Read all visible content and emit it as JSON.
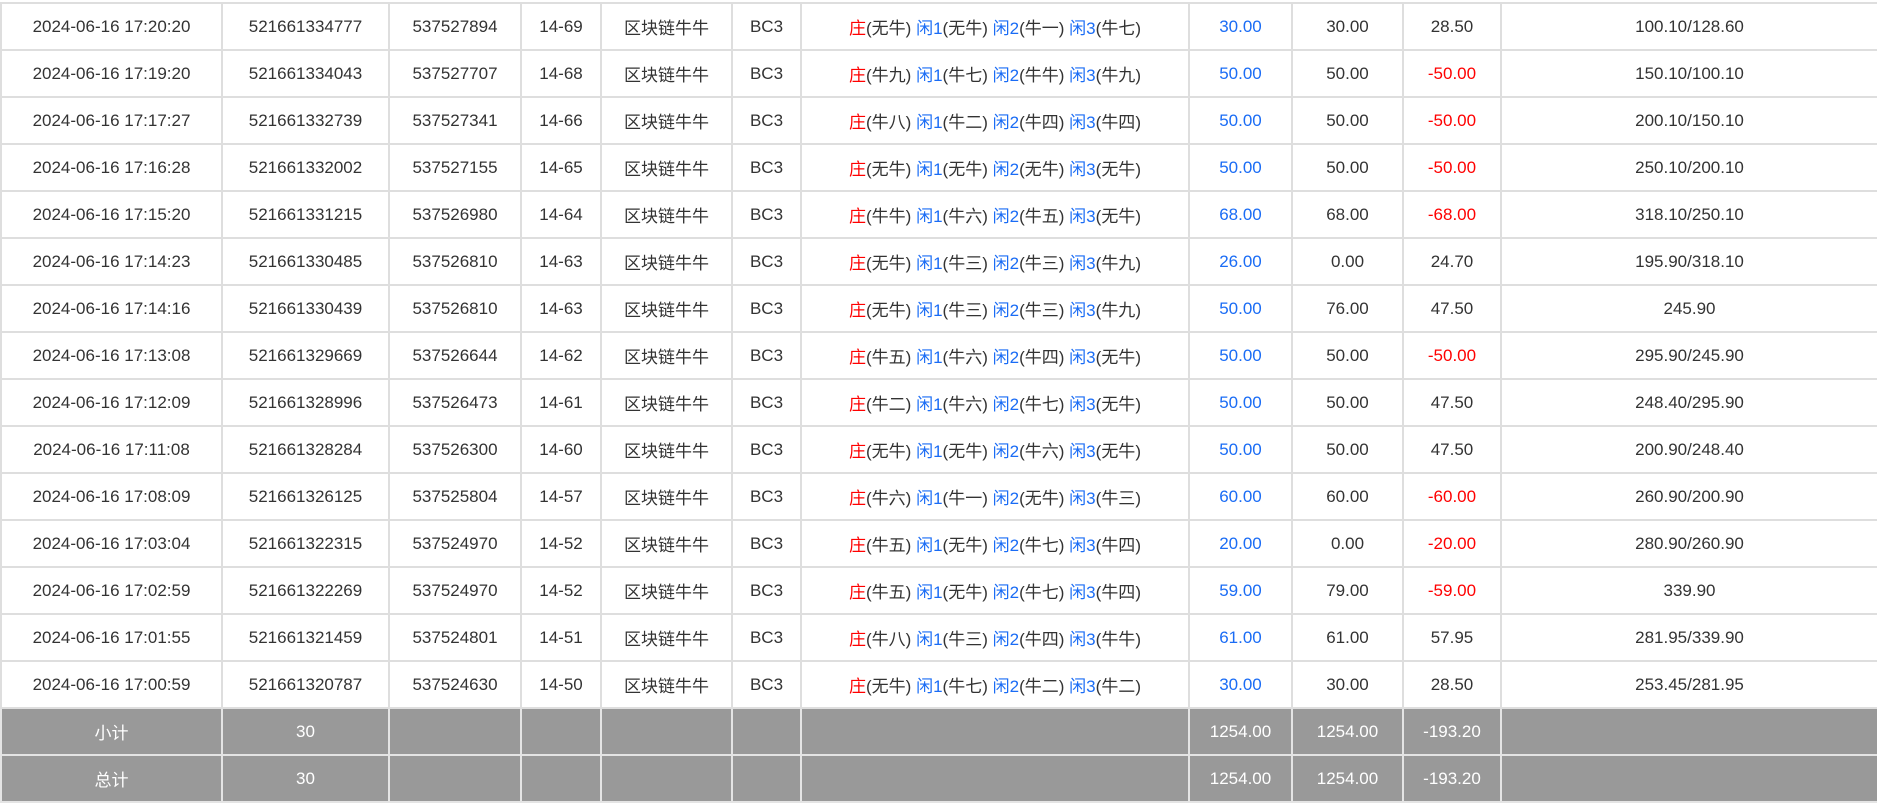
{
  "rows": [
    {
      "time": "2024-06-16 17:20:20",
      "order": "521661334777",
      "round": "537527894",
      "game_no": "14-69",
      "game": "区块链牛牛",
      "table": "BC3",
      "result": [
        "无牛",
        "无牛",
        "牛一",
        "牛七"
      ],
      "bet": "30.00",
      "valid": "30.00",
      "profit": "28.50",
      "balance": "100.10/128.60"
    },
    {
      "time": "2024-06-16 17:19:20",
      "order": "521661334043",
      "round": "537527707",
      "game_no": "14-68",
      "game": "区块链牛牛",
      "table": "BC3",
      "result": [
        "牛九",
        "牛七",
        "牛牛",
        "牛九"
      ],
      "bet": "50.00",
      "valid": "50.00",
      "profit": "-50.00",
      "balance": "150.10/100.10"
    },
    {
      "time": "2024-06-16 17:17:27",
      "order": "521661332739",
      "round": "537527341",
      "game_no": "14-66",
      "game": "区块链牛牛",
      "table": "BC3",
      "result": [
        "牛八",
        "牛二",
        "牛四",
        "牛四"
      ],
      "bet": "50.00",
      "valid": "50.00",
      "profit": "-50.00",
      "balance": "200.10/150.10"
    },
    {
      "time": "2024-06-16 17:16:28",
      "order": "521661332002",
      "round": "537527155",
      "game_no": "14-65",
      "game": "区块链牛牛",
      "table": "BC3",
      "result": [
        "无牛",
        "无牛",
        "无牛",
        "无牛"
      ],
      "bet": "50.00",
      "valid": "50.00",
      "profit": "-50.00",
      "balance": "250.10/200.10"
    },
    {
      "time": "2024-06-16 17:15:20",
      "order": "521661331215",
      "round": "537526980",
      "game_no": "14-64",
      "game": "区块链牛牛",
      "table": "BC3",
      "result": [
        "牛牛",
        "牛六",
        "牛五",
        "无牛"
      ],
      "bet": "68.00",
      "valid": "68.00",
      "profit": "-68.00",
      "balance": "318.10/250.10"
    },
    {
      "time": "2024-06-16 17:14:23",
      "order": "521661330485",
      "round": "537526810",
      "game_no": "14-63",
      "game": "区块链牛牛",
      "table": "BC3",
      "result": [
        "无牛",
        "牛三",
        "牛三",
        "牛九"
      ],
      "bet": "26.00",
      "valid": "0.00",
      "profit": "24.70",
      "balance": "195.90/318.10"
    },
    {
      "time": "2024-06-16 17:14:16",
      "order": "521661330439",
      "round": "537526810",
      "game_no": "14-63",
      "game": "区块链牛牛",
      "table": "BC3",
      "result": [
        "无牛",
        "牛三",
        "牛三",
        "牛九"
      ],
      "bet": "50.00",
      "valid": "76.00",
      "profit": "47.50",
      "balance": "245.90"
    },
    {
      "time": "2024-06-16 17:13:08",
      "order": "521661329669",
      "round": "537526644",
      "game_no": "14-62",
      "game": "区块链牛牛",
      "table": "BC3",
      "result": [
        "牛五",
        "牛六",
        "牛四",
        "无牛"
      ],
      "bet": "50.00",
      "valid": "50.00",
      "profit": "-50.00",
      "balance": "295.90/245.90"
    },
    {
      "time": "2024-06-16 17:12:09",
      "order": "521661328996",
      "round": "537526473",
      "game_no": "14-61",
      "game": "区块链牛牛",
      "table": "BC3",
      "result": [
        "牛二",
        "牛六",
        "牛七",
        "无牛"
      ],
      "bet": "50.00",
      "valid": "50.00",
      "profit": "47.50",
      "balance": "248.40/295.90"
    },
    {
      "time": "2024-06-16 17:11:08",
      "order": "521661328284",
      "round": "537526300",
      "game_no": "14-60",
      "game": "区块链牛牛",
      "table": "BC3",
      "result": [
        "无牛",
        "无牛",
        "牛六",
        "无牛"
      ],
      "bet": "50.00",
      "valid": "50.00",
      "profit": "47.50",
      "balance": "200.90/248.40"
    },
    {
      "time": "2024-06-16 17:08:09",
      "order": "521661326125",
      "round": "537525804",
      "game_no": "14-57",
      "game": "区块链牛牛",
      "table": "BC3",
      "result": [
        "牛六",
        "牛一",
        "无牛",
        "牛三"
      ],
      "bet": "60.00",
      "valid": "60.00",
      "profit": "-60.00",
      "balance": "260.90/200.90"
    },
    {
      "time": "2024-06-16 17:03:04",
      "order": "521661322315",
      "round": "537524970",
      "game_no": "14-52",
      "game": "区块链牛牛",
      "table": "BC3",
      "result": [
        "牛五",
        "无牛",
        "牛七",
        "牛四"
      ],
      "bet": "20.00",
      "valid": "0.00",
      "profit": "-20.00",
      "balance": "280.90/260.90"
    },
    {
      "time": "2024-06-16 17:02:59",
      "order": "521661322269",
      "round": "537524970",
      "game_no": "14-52",
      "game": "区块链牛牛",
      "table": "BC3",
      "result": [
        "牛五",
        "无牛",
        "牛七",
        "牛四"
      ],
      "bet": "59.00",
      "valid": "79.00",
      "profit": "-59.00",
      "balance": "339.90"
    },
    {
      "time": "2024-06-16 17:01:55",
      "order": "521661321459",
      "round": "537524801",
      "game_no": "14-51",
      "game": "区块链牛牛",
      "table": "BC3",
      "result": [
        "牛八",
        "牛三",
        "牛四",
        "牛牛"
      ],
      "bet": "61.00",
      "valid": "61.00",
      "profit": "57.95",
      "balance": "281.95/339.90"
    },
    {
      "time": "2024-06-16 17:00:59",
      "order": "521661320787",
      "round": "537524630",
      "game_no": "14-50",
      "game": "区块链牛牛",
      "table": "BC3",
      "result": [
        "无牛",
        "牛七",
        "牛二",
        "牛二"
      ],
      "bet": "30.00",
      "valid": "30.00",
      "profit": "28.50",
      "balance": "253.45/281.95"
    }
  ],
  "result_labels": [
    "庄",
    "闲1",
    "闲2",
    "闲3"
  ],
  "summary": [
    {
      "label": "小计",
      "count": "30",
      "bet": "1254.00",
      "valid": "1254.00",
      "profit": "-193.20"
    },
    {
      "label": "总计",
      "count": "30",
      "bet": "1254.00",
      "valid": "1254.00",
      "profit": "-193.20"
    }
  ],
  "colors": {
    "banker": "#ff0000",
    "player": "#1a6cf5",
    "negative": "#ff0000",
    "summary_bg": "#999999"
  }
}
